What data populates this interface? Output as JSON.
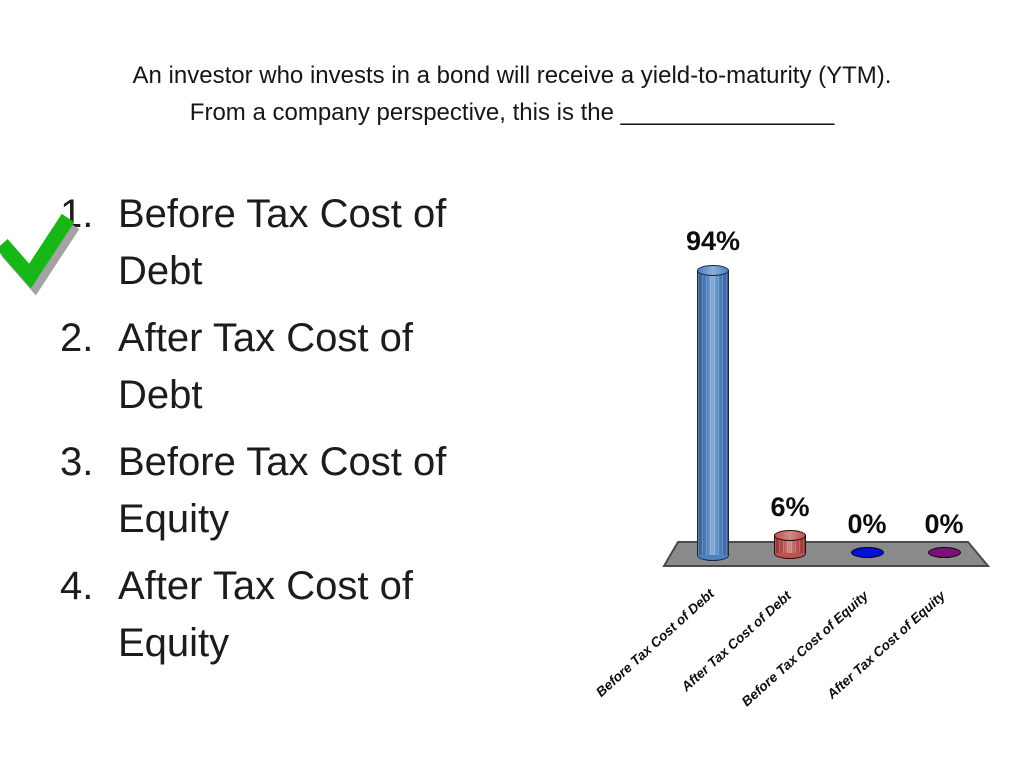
{
  "slide": {
    "title_line1": "An investor who invests in a bond will receive a yield-to-maturity (YTM).",
    "title_line2": "From a company perspective, this is the ________________",
    "options": [
      {
        "number": "1.",
        "label": "Before Tax Cost of Debt",
        "correct": true
      },
      {
        "number": "2.",
        "label": "After Tax Cost of Debt",
        "correct": false
      },
      {
        "number": "3.",
        "label": "Before Tax Cost of Equity",
        "correct": false
      },
      {
        "number": "4.",
        "label": "After Tax Cost of Equity",
        "correct": false
      }
    ],
    "checkmark": {
      "meaning": "correct-answer-indicator",
      "color": "#16b716",
      "shadow_color": "#a3a3a3"
    }
  },
  "chart_data": {
    "type": "bar",
    "subtype": "3d-cylinder",
    "title": "",
    "xlabel": "",
    "ylabel": "",
    "ylim": [
      0,
      100
    ],
    "grid": false,
    "legend": false,
    "categories": [
      "Before Tax Cost of Debt",
      "After Tax Cost of Debt",
      "Before Tax Cost of Equity",
      "After Tax Cost of Equity"
    ],
    "values": [
      94,
      6,
      0,
      0
    ],
    "value_labels": [
      "94%",
      "6%",
      "0%",
      "0%"
    ],
    "floor": {
      "fill": "#8a8a8a",
      "stroke": "#4a4a4a"
    },
    "bars": [
      {
        "value": 94,
        "label": "94%",
        "fill": "#4f81bd",
        "light": "#8cadd6",
        "dark": "#335e93",
        "outline": "#16294a"
      },
      {
        "value": 6,
        "label": "6%",
        "fill": "#bb534f",
        "light": "#d28a87",
        "dark": "#8c3431",
        "outline": "#2e0c0b"
      },
      {
        "value": 0,
        "label": "0%",
        "fill": "#0010d8",
        "light": "#0010d8",
        "dark": "#0010d8",
        "outline": "#000014"
      },
      {
        "value": 0,
        "label": "0%",
        "fill": "#7a1078",
        "light": "#7a1078",
        "dark": "#7a1078",
        "outline": "#140014"
      }
    ]
  }
}
